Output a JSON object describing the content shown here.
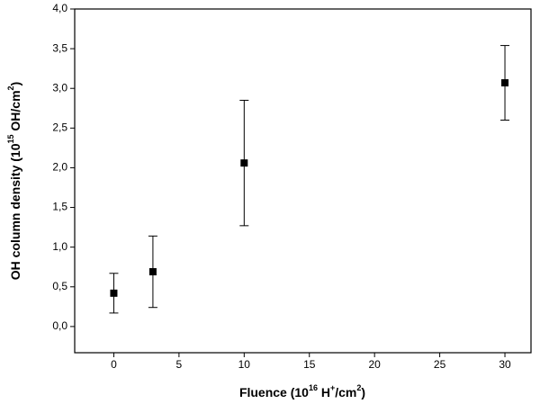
{
  "chart_data": {
    "type": "scatter",
    "xlabel": [
      "Fluence (10",
      "16",
      " H",
      "+",
      "/cm",
      "2",
      ")"
    ],
    "ylabel": [
      "OH column density (10",
      "15",
      " OH/cm",
      "2",
      ")"
    ],
    "x": [
      0,
      3,
      10,
      30
    ],
    "series": [
      {
        "values": [
          0.42,
          0.69,
          2.06,
          3.07
        ],
        "errors": [
          0.25,
          0.45,
          0.79,
          0.47
        ],
        "color": "#000000"
      }
    ],
    "xlim": [
      -3,
      32
    ],
    "xticks": [
      0,
      5,
      10,
      15,
      20,
      25,
      30
    ],
    "ylim": [
      -0.33,
      4.0
    ],
    "yticks": [
      {
        "value": 0,
        "label": "0,0"
      },
      {
        "value": 0.5,
        "label": "0,5"
      },
      {
        "value": 1,
        "label": "1,0"
      },
      {
        "value": 1.5,
        "label": "1,5"
      },
      {
        "value": 2,
        "label": "2,0"
      },
      {
        "value": 2.5,
        "label": "2,5"
      },
      {
        "value": 3,
        "label": "3,0"
      },
      {
        "value": 3.5,
        "label": "3,5"
      },
      {
        "value": 4,
        "label": "4,0"
      }
    ]
  }
}
